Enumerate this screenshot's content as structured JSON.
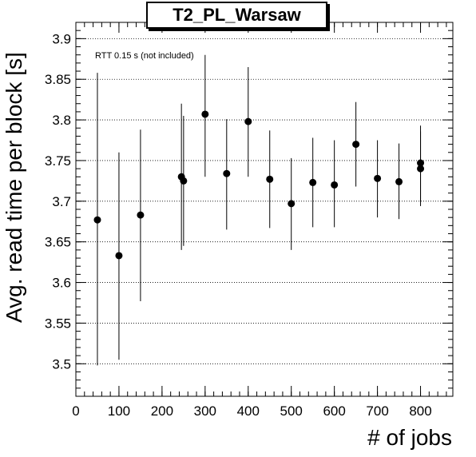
{
  "chart_data": {
    "type": "scatter",
    "title": "T2_PL_Warsaw",
    "xlabel": "# of jobs",
    "ylabel": "Avg. read time per block [s]",
    "annotation": "RTT 0.15 s (not included)",
    "xlim": [
      0,
      875
    ],
    "ylim": [
      3.46,
      3.92
    ],
    "xticks": [
      0,
      100,
      200,
      300,
      400,
      500,
      600,
      700,
      800
    ],
    "yticks": [
      3.5,
      3.55,
      3.6,
      3.65,
      3.7,
      3.75,
      3.8,
      3.85,
      3.9
    ],
    "ytick_labels": [
      "3.5",
      "3.55",
      "3.6",
      "3.65",
      "3.7",
      "3.75",
      "3.8",
      "3.85",
      "3.9"
    ],
    "grid": "horizontal",
    "points": [
      {
        "x": 50,
        "y": 3.677,
        "err_low": 3.498,
        "err_high": 3.858
      },
      {
        "x": 100,
        "y": 3.633,
        "err_low": 3.505,
        "err_high": 3.76
      },
      {
        "x": 150,
        "y": 3.683,
        "err_low": 3.577,
        "err_high": 3.788
      },
      {
        "x": 245,
        "y": 3.73,
        "err_low": 3.64,
        "err_high": 3.82
      },
      {
        "x": 250,
        "y": 3.725,
        "err_low": 3.645,
        "err_high": 3.805
      },
      {
        "x": 300,
        "y": 3.807,
        "err_low": 3.73,
        "err_high": 3.88
      },
      {
        "x": 350,
        "y": 3.734,
        "err_low": 3.665,
        "err_high": 3.801
      },
      {
        "x": 400,
        "y": 3.798,
        "err_low": 3.73,
        "err_high": 3.865
      },
      {
        "x": 450,
        "y": 3.727,
        "err_low": 3.667,
        "err_high": 3.787
      },
      {
        "x": 500,
        "y": 3.697,
        "err_low": 3.64,
        "err_high": 3.753
      },
      {
        "x": 550,
        "y": 3.723,
        "err_low": 3.668,
        "err_high": 3.778
      },
      {
        "x": 600,
        "y": 3.72,
        "err_low": 3.668,
        "err_high": 3.775
      },
      {
        "x": 650,
        "y": 3.77,
        "err_low": 3.718,
        "err_high": 3.822
      },
      {
        "x": 700,
        "y": 3.728,
        "err_low": 3.68,
        "err_high": 3.775
      },
      {
        "x": 750,
        "y": 3.724,
        "err_low": 3.678,
        "err_high": 3.771
      },
      {
        "x": 800,
        "y": 3.747,
        "err_low": 3.7,
        "err_high": 3.793
      },
      {
        "x": 800,
        "y": 3.74,
        "err_low": 3.694,
        "err_high": 3.786
      }
    ]
  }
}
